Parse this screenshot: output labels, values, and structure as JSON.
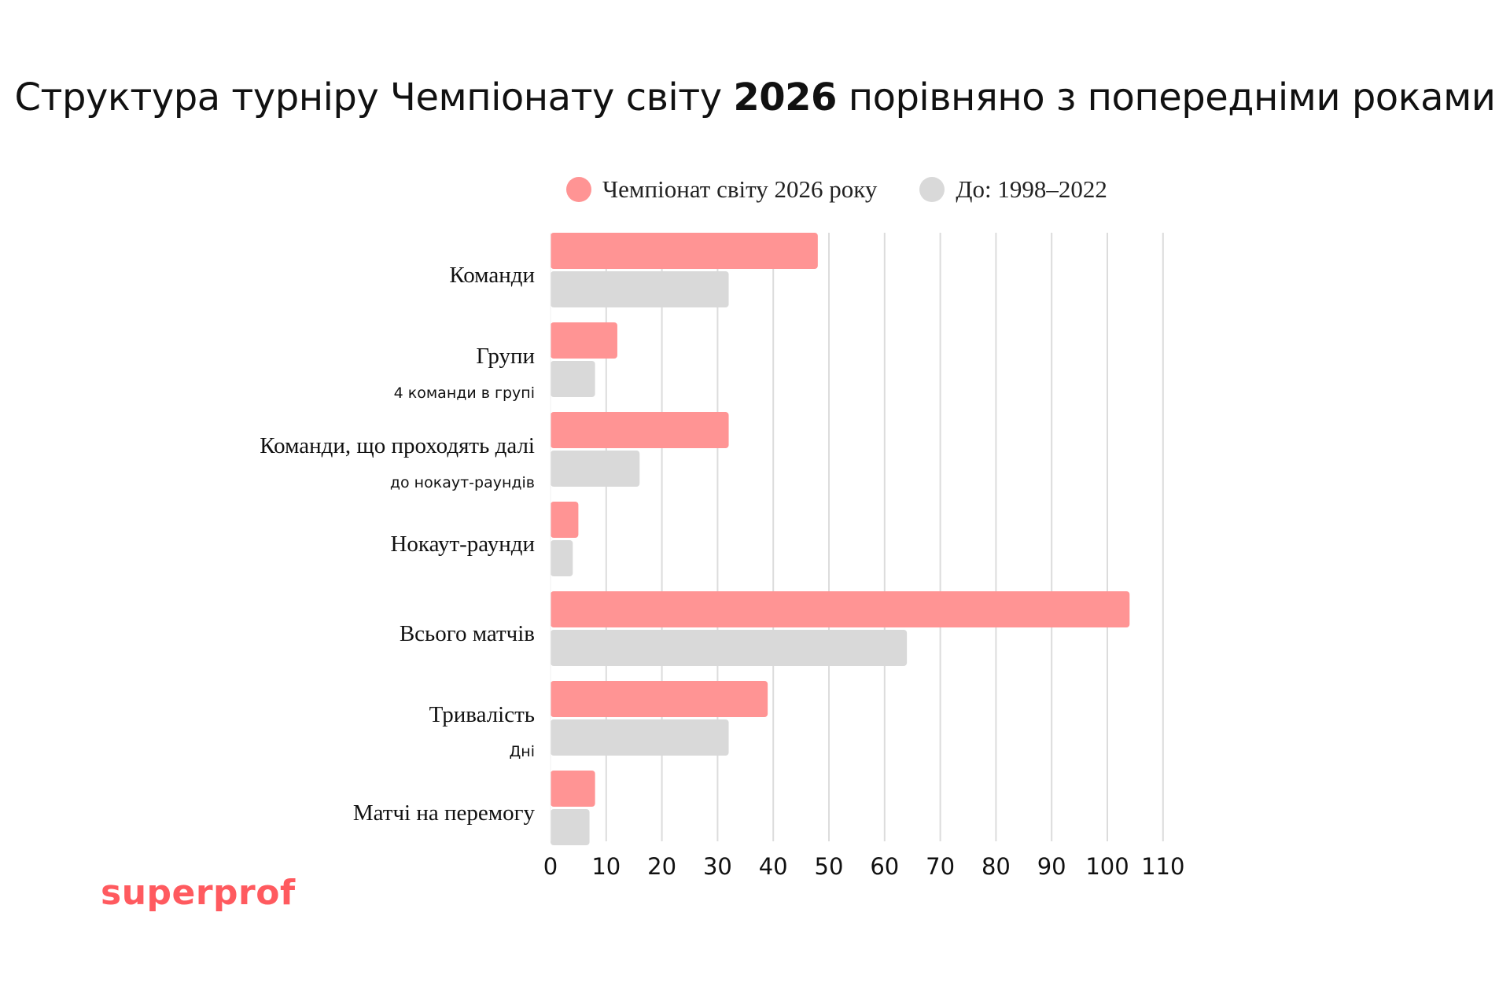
{
  "title": {
    "before": "Структура турніру Чемпіонату світу ",
    "bold": "2026",
    "after": " порівняно з попередніми роками"
  },
  "brand": "superprof",
  "colors": {
    "series_2026": "#ff9494",
    "series_prev": "#d9d9d9",
    "grid": "#dcdcdc",
    "brand": "#ff5a5f"
  },
  "chart_data": {
    "type": "bar",
    "orientation": "horizontal",
    "categories": [
      "Команди",
      "Групи",
      "Команди, що проходять далі",
      "Нокаут-раунди",
      "Всього матчів",
      "Тривалість",
      "Матчі на перемогу"
    ],
    "category_sublabels": [
      "",
      "4 команди в групі",
      "до нокаут-раундів",
      "",
      "",
      "Дні",
      ""
    ],
    "series": [
      {
        "name": "Чемпіонат світу 2026 року",
        "values": [
          48,
          12,
          32,
          5,
          104,
          39,
          8
        ]
      },
      {
        "name": "До: 1998–2022",
        "values": [
          32,
          8,
          16,
          4,
          64,
          32,
          7
        ]
      }
    ],
    "xlim": [
      0,
      110
    ],
    "xticks": [
      0,
      10,
      20,
      30,
      40,
      50,
      60,
      70,
      80,
      90,
      100,
      110
    ],
    "grid": "vertical",
    "legend": "top"
  }
}
